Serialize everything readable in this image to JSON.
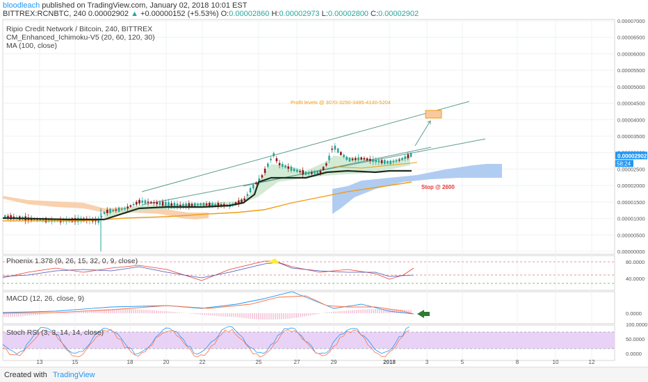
{
  "header": {
    "username": "bloodleach",
    "published": " published on TradingView.com, January 02, 2018 10:01 EST",
    "symbol": "BITTREX:RCNBTC, 240",
    "last": "0.00002902",
    "arrow": "▲",
    "change": "+0.00000152 (+5.53%)",
    "ohlc_o_label": "O:",
    "ohlc_o": "0.00002860",
    "ohlc_h_label": "H:",
    "ohlc_h": "0.00002973",
    "ohlc_l_label": "L:",
    "ohlc_l": "0.00002800",
    "ohlc_c_label": "C:",
    "ohlc_c": "0.00002902"
  },
  "legend": {
    "title": "Ripio Credit Network / Bitcoin, 240, BITTREX",
    "ichimoku": "CM_Enhanced_Ichimoku-V5 (20, 60, 120, 30)",
    "ma": "MA (100, close)"
  },
  "annotations": {
    "profit": "Profit levels @ 3070-3250-3485-4140-5204",
    "stop": "Stop @ 2600"
  },
  "price_axis": {
    "labels": [
      "0.00007000",
      "0.00006500",
      "0.00006000",
      "0.00005500",
      "0.00005000",
      "0.00004500",
      "0.00004000",
      "0.00003500",
      "0.00003000",
      "0.00002500",
      "0.00002000",
      "0.00001500",
      "0.00001000",
      "0.00000500",
      "0.00000000"
    ],
    "current_price": "0.00002902",
    "countdown": "58:24"
  },
  "panels": {
    "phoenix": {
      "label": "Phoenix 1.378 (9, 26, 15, 32, 0, 9, close)",
      "ticks": [
        "80.0000",
        "40.0000"
      ]
    },
    "macd": {
      "label": "MACD (12, 26, close, 9)",
      "ticks": [
        "0.0000"
      ]
    },
    "stoch": {
      "label": "Stoch RSI (3, 3, 14, 14, close)",
      "ticks": [
        "100.0000",
        "50.0000",
        "0.0000"
      ]
    }
  },
  "time_axis": [
    "13",
    "15",
    "18",
    "20",
    "22",
    "25",
    "27",
    "29",
    "2018",
    "3",
    "5",
    "8",
    "10",
    "12"
  ],
  "footer": {
    "created": "Created with",
    "brand": "TradingView"
  },
  "colors": {
    "up": "#26a69a",
    "down": "#8b1a1a",
    "ma": "#f39c12",
    "kijun": "#1e2a1e",
    "cloud_orange": "#f8c9a0",
    "cloud_blue": "#a9c6ef",
    "channel": "#5d9b8c",
    "profit": "#f39c12",
    "stop": "#e53935",
    "stoch_band": "#e2c8f5",
    "accent": "#2196f3"
  },
  "chart_data": {
    "type": "line",
    "title": "Ripio Credit Network / Bitcoin, 240, BITTREX",
    "y_axis_range": [
      0,
      7e-05
    ],
    "x_ticks": [
      "13",
      "15",
      "18",
      "20",
      "22",
      "25",
      "27",
      "29",
      "2018",
      "3",
      "5",
      "8",
      "10",
      "12"
    ],
    "last_close": 2.902e-05,
    "series": [
      {
        "name": "MA (100, close)",
        "x": [
          "13",
          "15",
          "18",
          "20",
          "22",
          "25",
          "27",
          "29",
          "2018"
        ],
        "values": [
          1e-05,
          1.05e-05,
          1.1e-05,
          1.13e-05,
          1.22e-05,
          1.42e-05,
          1.65e-05,
          1.82e-05,
          1.98e-05
        ]
      }
    ],
    "annotations": [
      "Profit levels @ 3070-3250-3485-4140-5204",
      "Stop @ 2600"
    ]
  }
}
